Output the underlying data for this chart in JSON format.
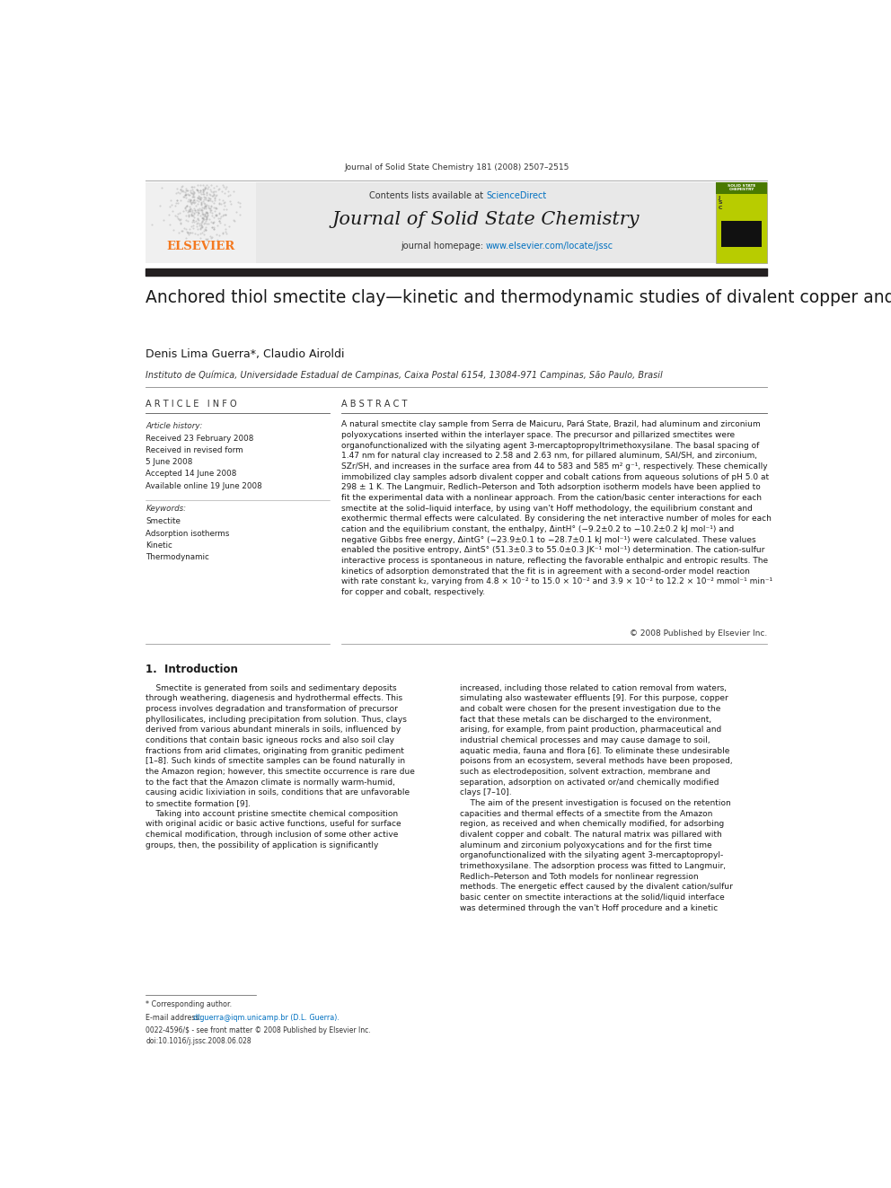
{
  "page_width": 9.92,
  "page_height": 13.23,
  "dpi": 100,
  "background_color": "#ffffff",
  "journal_citation": "Journal of Solid State Chemistry 181 (2008) 2507–2515",
  "contents_label": "Contents lists available at ",
  "science_direct": "ScienceDirect",
  "journal_name": "Journal of Solid State Chemistry",
  "journal_homepage_label": "journal homepage: ",
  "journal_url": "www.elsevier.com/locate/jssc",
  "thick_bar_color": "#231f20",
  "header_bg_color": "#e8e8e8",
  "article_title": "Anchored thiol smectite clay—kinetic and thermodynamic studies of divalent copper and cobalt adsorption",
  "authors": "Denis Lima Guerra*, Claudio Airoldi",
  "affiliation": "Instituto de Química, Universidade Estadual de Campinas, Caixa Postal 6154, 13084-971 Campinas, São Paulo, Brasil",
  "article_info_title": "A R T I C L E   I N F O",
  "abstract_title": "A B S T R A C T",
  "article_history_label": "Article history:",
  "received1": "Received 23 February 2008",
  "received2": "Received in revised form",
  "received2b": "5 June 2008",
  "accepted": "Accepted 14 June 2008",
  "available": "Available online 19 June 2008",
  "keywords_label": "Keywords:",
  "keywords": [
    "Smectite",
    "Adsorption isotherms",
    "Kinetic",
    "Thermodynamic"
  ],
  "abstract_text": "A natural smectite clay sample from Serra de Maicuru, Pará State, Brazil, had aluminum and zirconium\npolyoxycations inserted within the interlayer space. The precursor and pillarized smectites were\norganofunctionalized with the silyating agent 3-mercaptopropyltrimethoxysilane. The basal spacing of\n1.47 nm for natural clay increased to 2.58 and 2.63 nm, for pillared aluminum, SAl/SH, and zirconium,\nSZr/SH, and increases in the surface area from 44 to 583 and 585 m² g⁻¹, respectively. These chemically\nimmobilized clay samples adsorb divalent copper and cobalt cations from aqueous solutions of pH 5.0 at\n298 ± 1 K. The Langmuir, Redlich–Peterson and Toth adsorption isotherm models have been applied to\nfit the experimental data with a nonlinear approach. From the cation/basic center interactions for each\nsmectite at the solid–liquid interface, by using van't Hoff methodology, the equilibrium constant and\nexothermic thermal effects were calculated. By considering the net interactive number of moles for each\ncation and the equilibrium constant, the enthalpy, ΔintH° (−9.2±0.2 to −10.2±0.2 kJ mol⁻¹) and\nnegative Gibbs free energy, ΔintG° (−23.9±0.1 to −28.7±0.1 kJ mol⁻¹) were calculated. These values\nenabled the positive entropy, ΔintS° (51.3±0.3 to 55.0±0.3 JK⁻¹ mol⁻¹) determination. The cation-sulfur\ninteractive process is spontaneous in nature, reflecting the favorable enthalpic and entropic results. The\nkinetics of adsorption demonstrated that the fit is in agreement with a second-order model reaction\nwith rate constant k₂, varying from 4.8 × 10⁻² to 15.0 × 10⁻² and 3.9 × 10⁻² to 12.2 × 10⁻² mmol⁻¹ min⁻¹\nfor copper and cobalt, respectively.",
  "copyright": "© 2008 Published by Elsevier Inc.",
  "section1_title": "1.  Introduction",
  "intro_col1": "    Smectite is generated from soils and sedimentary deposits\nthrough weathering, diagenesis and hydrothermal effects. This\nprocess involves degradation and transformation of precursor\nphyllosilicates, including precipitation from solution. Thus, clays\nderived from various abundant minerals in soils, influenced by\nconditions that contain basic igneous rocks and also soil clay\nfractions from arid climates, originating from granitic pediment\n[1–8]. Such kinds of smectite samples can be found naturally in\nthe Amazon region; however, this smectite occurrence is rare due\nto the fact that the Amazon climate is normally warm-humid,\ncausing acidic lixiviation in soils, conditions that are unfavorable\nto smectite formation [9].\n    Taking into account pristine smectite chemical composition\nwith original acidic or basic active functions, useful for surface\nchemical modification, through inclusion of some other active\ngroups, then, the possibility of application is significantly",
  "intro_col2": "increased, including those related to cation removal from waters,\nsimulating also wastewater effluents [9]. For this purpose, copper\nand cobalt were chosen for the present investigation due to the\nfact that these metals can be discharged to the environment,\narising, for example, from paint production, pharmaceutical and\nindustrial chemical processes and may cause damage to soil,\naquatic media, fauna and flora [6]. To eliminate these undesirable\npoisons from an ecosystem, several methods have been proposed,\nsuch as electrodeposition, solvent extraction, membrane and\nseparation, adsorption on activated or/and chemically modified\nclays [7–10].\n    The aim of the present investigation is focused on the retention\ncapacities and thermal effects of a smectite from the Amazon\nregion, as received and when chemically modified, for adsorbing\ndivalent copper and cobalt. The natural matrix was pillared with\naluminum and zirconium polyoxycations and for the first time\norganofunctionalized with the silyating agent 3-mercaptopropyl-\ntrimethoxysilane. The adsorption process was fitted to Langmuir,\nRedlich–Peterson and Toth models for nonlinear regression\nmethods. The energetic effect caused by the divalent cation/sulfur\nbasic center on smectite interactions at the solid/liquid interface\nwas determined through the van't Hoff procedure and a kinetic",
  "footnote_star": "* Corresponding author.",
  "footnote_email_label": "E-mail address: ",
  "footnote_email": "dlguerra@iqm.unicamp.br (D.L. Guerra).",
  "footnote_issn": "0022-4596/$ - see front matter © 2008 Published by Elsevier Inc.",
  "footnote_doi": "doi:10.1016/j.jssc.2008.06.028",
  "elsevier_color": "#f47920",
  "sciencedirect_color": "#0070c0",
  "url_color": "#0070c0",
  "ref_color": "#0070c0"
}
